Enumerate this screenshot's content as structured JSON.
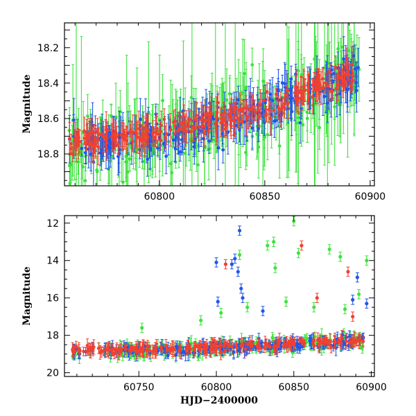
{
  "chart_data": [
    {
      "type": "scatter",
      "panel": "top",
      "ylabel": "Magnitude",
      "xlabel": "",
      "xlim": [
        60755,
        60902
      ],
      "ylim": [
        18.98,
        18.06
      ],
      "y_inverted": true,
      "xticks": [
        60800,
        60850,
        60900
      ],
      "yticks": [
        18.2,
        18.4,
        18.6,
        18.8
      ],
      "series": [
        {
          "color": "#3ee23e",
          "trend": [
            [
              60755,
              18.78
            ],
            [
              60800,
              18.72
            ],
            [
              60850,
              18.58
            ],
            [
              60895,
              18.34
            ]
          ],
          "scatter_sd": 0.09,
          "errorbar_typical": 0.12
        },
        {
          "color": "#2256e6",
          "trend": [
            [
              60755,
              18.74
            ],
            [
              60800,
              18.7
            ],
            [
              60850,
              18.55
            ],
            [
              60895,
              18.32
            ]
          ],
          "scatter_sd": 0.06,
          "errorbar_typical": 0.08
        },
        {
          "color": "#f24030",
          "trend": [
            [
              60755,
              18.73
            ],
            [
              60800,
              18.69
            ],
            [
              60850,
              18.54
            ],
            [
              60895,
              18.33
            ]
          ],
          "scatter_sd": 0.035,
          "errorbar_typical": 0.06
        }
      ],
      "grid": false,
      "legend": "none"
    },
    {
      "type": "scatter",
      "panel": "bottom",
      "ylabel": "Magnitude",
      "xlabel": "HJD−2400000",
      "xlim": [
        60702,
        60902
      ],
      "ylim": [
        20.2,
        11.6
      ],
      "y_inverted": true,
      "xticks": [
        60750,
        60800,
        60850,
        60900
      ],
      "yticks": [
        12,
        14,
        16,
        18,
        20
      ],
      "series": [
        {
          "color": "#3ee23e",
          "trend": [
            [
              60702,
              18.9
            ],
            [
              60800,
              18.7
            ],
            [
              60900,
              18.2
            ]
          ],
          "outliers": [
            [
              60752,
              17.6
            ],
            [
              60790,
              17.2
            ],
            [
              60803,
              16.8
            ],
            [
              60815,
              13.7
            ],
            [
              60820,
              16.5
            ],
            [
              60833,
              13.2
            ],
            [
              60837,
              13.0
            ],
            [
              60838,
              14.4
            ],
            [
              60845,
              16.2
            ],
            [
              60850,
              11.9
            ],
            [
              60853,
              13.6
            ],
            [
              60863,
              16.5
            ],
            [
              60873,
              13.4
            ],
            [
              60880,
              13.8
            ],
            [
              60883,
              16.6
            ],
            [
              60892,
              15.8
            ],
            [
              60897,
              14.0
            ]
          ]
        },
        {
          "color": "#2256e6",
          "trend": [
            [
              60702,
              18.85
            ],
            [
              60800,
              18.7
            ],
            [
              60900,
              18.25
            ]
          ],
          "outliers": [
            [
              60800,
              14.1
            ],
            [
              60801,
              16.2
            ],
            [
              60810,
              14.2
            ],
            [
              60812,
              13.9
            ],
            [
              60814,
              14.6
            ],
            [
              60815,
              12.4
            ],
            [
              60816,
              15.5
            ],
            [
              60817,
              16.0
            ],
            [
              60830,
              16.7
            ],
            [
              60888,
              16.1
            ],
            [
              60891,
              14.9
            ],
            [
              60897,
              16.3
            ]
          ]
        },
        {
          "color": "#f24030",
          "trend": [
            [
              60702,
              18.8
            ],
            [
              60800,
              18.65
            ],
            [
              60900,
              18.25
            ]
          ],
          "outliers": [
            [
              60806,
              14.2
            ],
            [
              60855,
              13.2
            ],
            [
              60865,
              16.0
            ],
            [
              60885,
              14.6
            ],
            [
              60888,
              17.0
            ]
          ]
        }
      ],
      "grid": false,
      "legend": "none"
    }
  ]
}
